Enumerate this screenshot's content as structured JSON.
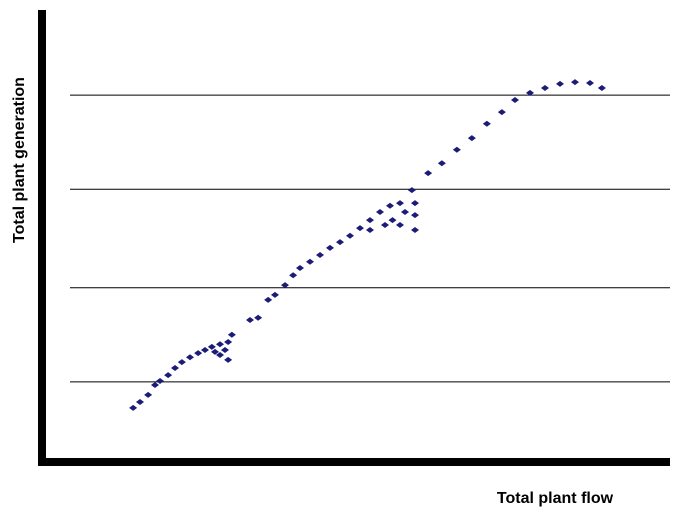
{
  "chart_data": {
    "type": "scatter",
    "xlabel": "Total plant flow",
    "ylabel": "Total plant  generation",
    "color": "#1c1c78",
    "grid": true,
    "xlim": [
      0,
      100
    ],
    "ylim": [
      0,
      100
    ],
    "yticks": [
      17,
      38,
      60,
      81
    ],
    "x": [
      14.1,
      15.2,
      16.5,
      17.6,
      18.4,
      19.7,
      20.8,
      21.9,
      23.2,
      24.5,
      25.6,
      26.7,
      28,
      29.3,
      29.3,
      28,
      27.2,
      28.8,
      29.9,
      32.8,
      34.1,
      35.7,
      36.8,
      38.4,
      39.7,
      40.8,
      42.4,
      44,
      45.6,
      47.2,
      48.8,
      50.4,
      52,
      53.6,
      55.2,
      56.8,
      59.2,
      57.6,
      59.2,
      55.6,
      59.2,
      56.8,
      54.4,
      52,
      58.7,
      61.3,
      63.5,
      65.9,
      68.3,
      70.7,
      73.1,
      75.2,
      77.6,
      80,
      82.4,
      84.8,
      87.2,
      89.1
    ],
    "values": [
      11.2,
      12.5,
      14.1,
      16.3,
      17.2,
      18.5,
      20.1,
      21.4,
      22.5,
      23.4,
      24.1,
      24.8,
      25.4,
      25.9,
      21.9,
      23,
      23.7,
      24.1,
      27.5,
      30.8,
      31.3,
      35.3,
      36.4,
      38.6,
      40.8,
      42.4,
      43.8,
      45.3,
      46.9,
      48.2,
      49.6,
      51.3,
      53.1,
      54.9,
      56.3,
      56.9,
      56.9,
      54.9,
      54.2,
      53.1,
      50.9,
      52,
      52,
      50.9,
      59.8,
      63.6,
      65.8,
      68.8,
      71.4,
      74.6,
      77.2,
      79.9,
      81.5,
      82.6,
      83.5,
      83.9,
      83.7,
      82.6
    ]
  }
}
